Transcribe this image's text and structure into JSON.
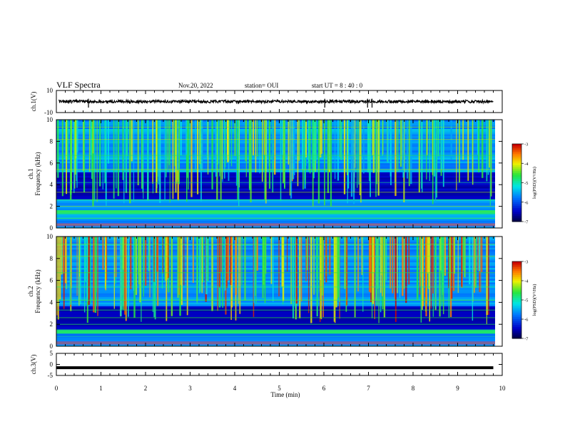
{
  "header": {
    "title": "VLF Spectra",
    "date": "Nov.20, 2022",
    "station": "station= OUI",
    "start": "start  UT =   8  : 40 : 0"
  },
  "chart_data": [
    {
      "type": "line",
      "panel": "ch1-waveform",
      "ylabel": "ch.1(V)",
      "ylim": [
        -10,
        10
      ],
      "yticks": [
        "10",
        "-10"
      ],
      "xlim": [
        0,
        10
      ],
      "baseline": 0,
      "extent_min": [
        0.05,
        9.8
      ],
      "description_values": {
        "typical_range_V": [
          -1.5,
          1.5
        ],
        "spikes_at_min": [
          0.72,
          6.02,
          6.98,
          7.08
        ]
      }
    },
    {
      "type": "heatmap",
      "panel": "ch1-spectrogram",
      "ylabel_lines": [
        "ch.1",
        "Frequency  (kHz)"
      ],
      "ylim": [
        0,
        10
      ],
      "yticks": [
        "0",
        "2",
        "4",
        "6",
        "8",
        "10"
      ],
      "xlim": [
        0,
        10
      ],
      "colorbar": {
        "label": "log(PSD)(V²/Hz)",
        "range": [
          -7,
          -3
        ],
        "ticks": [
          "-3",
          "-4",
          "-5",
          "-6",
          "-7"
        ]
      },
      "features": {
        "dark_band_kHz": [
          2.6,
          5.2
        ],
        "bright_band_kHz": [
          1.2,
          1.6
        ],
        "low_band_kHz": [
          0.1,
          0.4
        ]
      }
    },
    {
      "type": "heatmap",
      "panel": "ch2-spectrogram",
      "ylabel_lines": [
        "ch.2",
        "Frequency  (kHz)"
      ],
      "ylim": [
        0,
        10
      ],
      "yticks": [
        "0",
        "2",
        "4",
        "6",
        "8",
        "10"
      ],
      "xlim": [
        0,
        10
      ],
      "colorbar": {
        "label": "log(PSD)(V²/Hz)",
        "range": [
          -7,
          -3
        ],
        "ticks": [
          "-3",
          "-4",
          "-5",
          "-6",
          "-7"
        ]
      },
      "features": {
        "dark_band_kHz": [
          1.4,
          3.8
        ],
        "bright_band_kHz": [
          1.1,
          1.5
        ]
      }
    },
    {
      "type": "line",
      "panel": "ch3-waveform",
      "ylabel": "ch.3(V)",
      "ylim": [
        -5,
        5
      ],
      "yticks": [
        "5",
        "0",
        "-5"
      ],
      "xlim": [
        0,
        10
      ],
      "constant_value_V": -1.5,
      "extent_min": [
        0,
        9.8
      ]
    }
  ],
  "xaxis": {
    "label": "Time  (min)",
    "ticks": [
      "0",
      "1",
      "2",
      "3",
      "4",
      "5",
      "6",
      "7",
      "8",
      "9",
      "10"
    ],
    "range": [
      0,
      10
    ]
  }
}
